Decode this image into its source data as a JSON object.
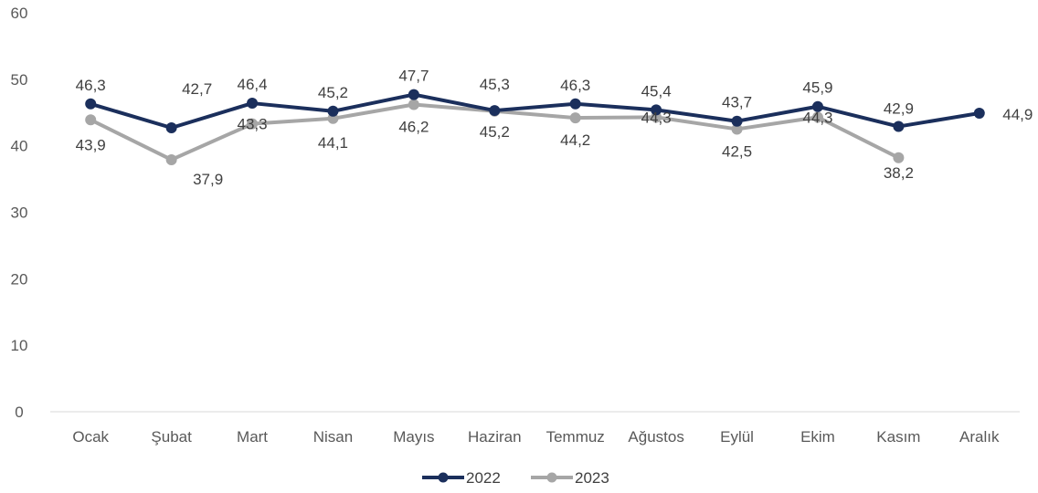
{
  "chart_data": {
    "type": "line",
    "categories": [
      "Ocak",
      "Şubat",
      "Mart",
      "Nisan",
      "Mayıs",
      "Haziran",
      "Temmuz",
      "Ağustos",
      "Eylül",
      "Ekim",
      "Kasım",
      "Aralık"
    ],
    "series": [
      {
        "name": "2022",
        "color": "#1b2f5c",
        "values": [
          46.3,
          42.7,
          46.4,
          45.2,
          47.7,
          45.3,
          46.3,
          45.4,
          43.7,
          45.9,
          42.9,
          44.9
        ],
        "labels": [
          "46,3",
          "42,7",
          "46,4",
          "45,2",
          "47,7",
          "45,3",
          "46,3",
          "45,4",
          "43,7",
          "45,9",
          "42,9",
          "44,9"
        ]
      },
      {
        "name": "2023",
        "color": "#a6a6a6",
        "values": [
          43.9,
          37.9,
          43.3,
          44.1,
          46.2,
          45.2,
          44.2,
          44.3,
          42.5,
          44.3,
          38.2,
          null
        ],
        "labels": [
          "43,9",
          "37,9",
          "43,3",
          "44,1",
          "46,2",
          "45,2",
          "44,2",
          "44,3",
          "42,5",
          "44,3",
          "38,2",
          null
        ]
      }
    ],
    "ylim": [
      0,
      60
    ],
    "yticks": [
      "0",
      "10",
      "20",
      "30",
      "40",
      "50",
      "60"
    ],
    "grid": false,
    "legend": "bottom"
  }
}
